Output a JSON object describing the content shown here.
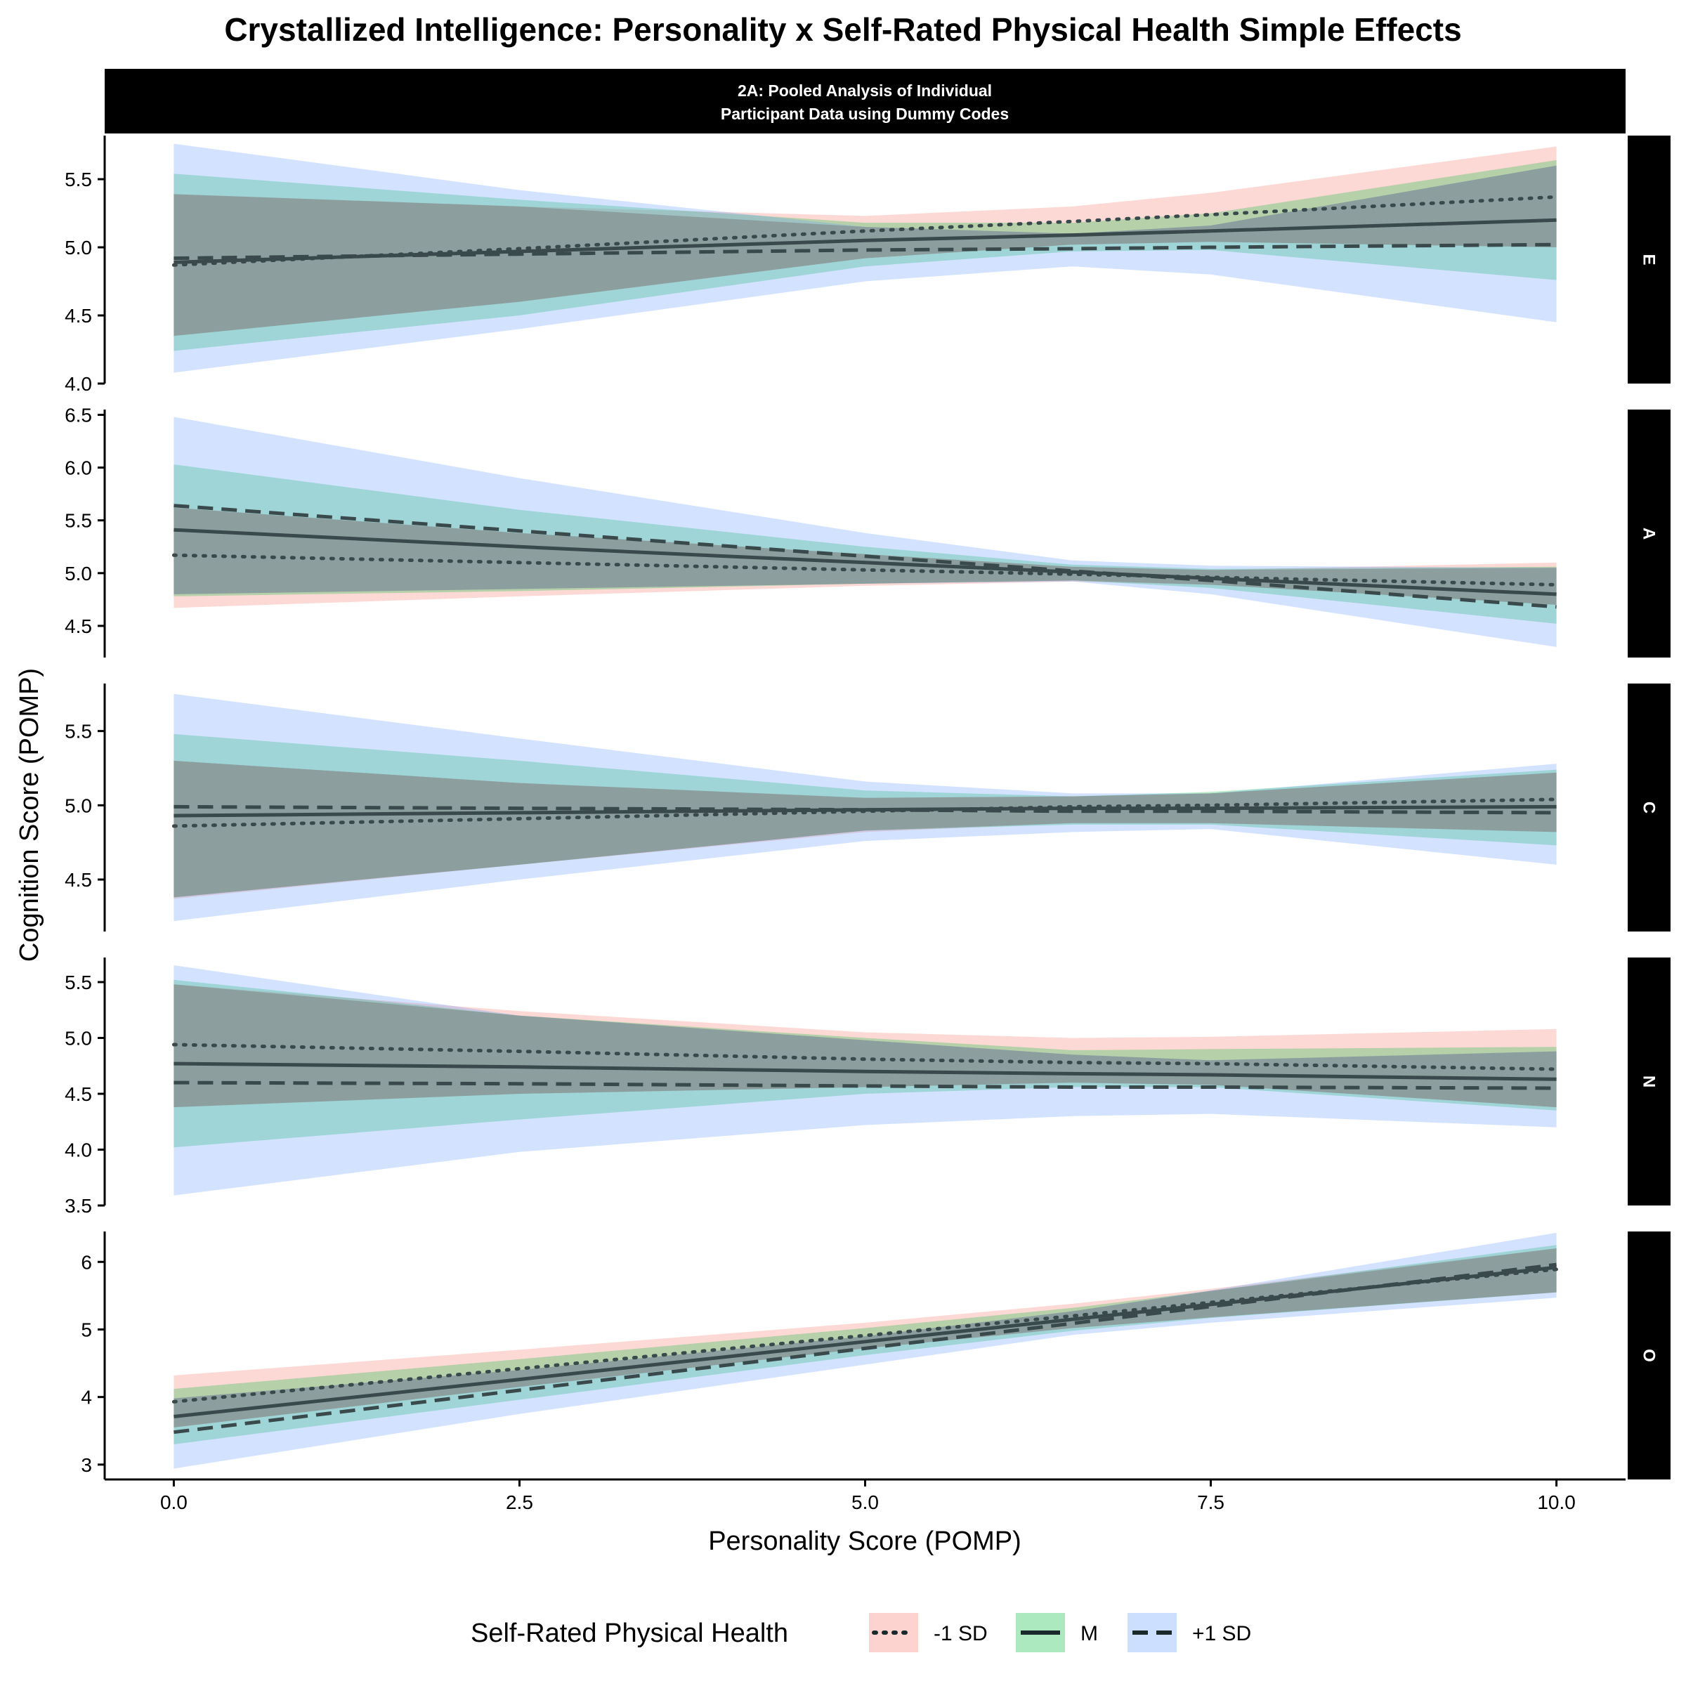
{
  "title": "Crystallized Intelligence: Personality x Self-Rated Physical Health Simple Effects",
  "strip_top": {
    "line1": "2A: Pooled Analysis of Individual",
    "line2": "Participant Data using Dummy Codes"
  },
  "xlabel": "Personality Score (POMP)",
  "ylabel": "Cognition Score (POMP)",
  "legend": {
    "title": "Self-Rated Physical Health",
    "items": [
      {
        "label": "-1 SD",
        "fill": "#f8766d",
        "dash": "dotted"
      },
      {
        "label": "M",
        "fill": "#00ba38",
        "dash": "solid"
      },
      {
        "label": "+1 SD",
        "fill": "#619cff",
        "dash": "dashed"
      }
    ]
  },
  "colors": {
    "minus_sd_band": "#f8766d",
    "mean_band": "#00ba38",
    "plus_sd_band": "#619cff",
    "line": "#3a4a4c",
    "strip_bg": "#000000",
    "strip_text": "#ffffff"
  },
  "chart_data": {
    "type": "line",
    "facet_by": "trait",
    "x_ticks": [
      "0.0",
      "2.5",
      "5.0",
      "7.5",
      "10.0"
    ],
    "xlim": [
      -0.5,
      10.5
    ],
    "x": [
      0,
      2.5,
      5,
      6.5,
      7.5,
      10
    ],
    "panels": [
      {
        "trait": "E",
        "ylim": [
          4.0,
          5.82
        ],
        "y_ticks": [
          "4.0",
          "4.5",
          "5.0",
          "5.5"
        ],
        "series": [
          {
            "name": "-1 SD",
            "values": [
              4.87,
              4.99,
              5.12,
              5.19,
              5.24,
              5.37
            ],
            "lower": [
              4.35,
              4.6,
              4.92,
              5.02,
              5.04,
              5.0
            ],
            "upper": [
              5.39,
              5.3,
              5.23,
              5.3,
              5.4,
              5.74
            ]
          },
          {
            "name": "M",
            "values": [
              4.89,
              4.97,
              5.05,
              5.09,
              5.12,
              5.2
            ],
            "lower": [
              4.24,
              4.5,
              4.86,
              4.97,
              4.98,
              4.76
            ],
            "upper": [
              5.54,
              5.35,
              5.18,
              5.18,
              5.25,
              5.64
            ]
          },
          {
            "name": "+1 SD",
            "values": [
              4.92,
              4.95,
              4.98,
              4.99,
              5.0,
              5.02
            ],
            "lower": [
              4.08,
              4.4,
              4.75,
              4.86,
              4.8,
              4.45
            ],
            "upper": [
              5.76,
              5.42,
              5.15,
              5.1,
              5.16,
              5.6
            ]
          }
        ]
      },
      {
        "trait": "A",
        "ylim": [
          4.2,
          6.55
        ],
        "y_ticks": [
          "4.5",
          "5.0",
          "5.5",
          "6.0",
          "6.5"
        ],
        "series": [
          {
            "name": "-1 SD",
            "values": [
              5.17,
              5.1,
              5.03,
              4.99,
              4.96,
              4.89
            ],
            "lower": [
              4.67,
              4.78,
              4.88,
              4.92,
              4.89,
              4.7
            ],
            "upper": [
              5.62,
              5.38,
              5.18,
              5.06,
              5.03,
              5.1
            ]
          },
          {
            "name": "M",
            "values": [
              5.41,
              5.25,
              5.1,
              5.01,
              4.95,
              4.8
            ],
            "lower": [
              4.78,
              4.83,
              4.9,
              4.93,
              4.86,
              4.52
            ],
            "upper": [
              6.03,
              5.6,
              5.25,
              5.08,
              5.04,
              5.06
            ]
          },
          {
            "name": "+1 SD",
            "values": [
              5.64,
              5.4,
              5.16,
              5.02,
              4.93,
              4.68
            ],
            "lower": [
              4.8,
              4.85,
              4.9,
              4.92,
              4.8,
              4.3
            ],
            "upper": [
              6.48,
              5.9,
              5.38,
              5.12,
              5.07,
              5.05
            ]
          }
        ]
      },
      {
        "trait": "C",
        "ylim": [
          4.15,
          5.82
        ],
        "y_ticks": [
          "4.5",
          "5.0",
          "5.5"
        ],
        "series": [
          {
            "name": "-1 SD",
            "values": [
              4.86,
              4.91,
              4.96,
              4.99,
              5.0,
              5.04
            ],
            "lower": [
              4.37,
              4.6,
              4.82,
              4.88,
              4.88,
              4.82
            ],
            "upper": [
              5.3,
              5.15,
              5.05,
              5.06,
              5.08,
              5.22
            ]
          },
          {
            "name": "M",
            "values": [
              4.93,
              4.95,
              4.97,
              4.98,
              4.98,
              4.99
            ],
            "lower": [
              4.38,
              4.6,
              4.83,
              4.87,
              4.87,
              4.73
            ],
            "upper": [
              5.48,
              5.3,
              5.1,
              5.06,
              5.09,
              5.24
            ]
          },
          {
            "name": "+1 SD",
            "values": [
              4.99,
              4.98,
              4.97,
              4.96,
              4.96,
              4.95
            ],
            "lower": [
              4.22,
              4.5,
              4.76,
              4.82,
              4.84,
              4.6
            ],
            "upper": [
              5.75,
              5.45,
              5.16,
              5.08,
              5.08,
              5.28
            ]
          }
        ]
      },
      {
        "trait": "N",
        "ylim": [
          3.5,
          5.72
        ],
        "y_ticks": [
          "3.5",
          "4.0",
          "4.5",
          "5.0",
          "5.5"
        ],
        "series": [
          {
            "name": "-1 SD",
            "values": [
              4.94,
              4.88,
              4.81,
              4.78,
              4.77,
              4.72
            ],
            "lower": [
              4.38,
              4.5,
              4.56,
              4.6,
              4.58,
              4.38
            ],
            "upper": [
              5.48,
              5.24,
              5.05,
              5.0,
              5.01,
              5.08
            ]
          },
          {
            "name": "M",
            "values": [
              4.77,
              4.74,
              4.7,
              4.68,
              4.67,
              4.63
            ],
            "lower": [
              4.02,
              4.27,
              4.5,
              4.56,
              4.56,
              4.35
            ],
            "upper": [
              5.52,
              5.2,
              5.0,
              4.89,
              4.9,
              4.92
            ]
          },
          {
            "name": "+1 SD",
            "values": [
              4.6,
              4.59,
              4.57,
              4.56,
              4.56,
              4.55
            ],
            "lower": [
              3.59,
              3.98,
              4.22,
              4.3,
              4.32,
              4.2
            ],
            "upper": [
              5.65,
              5.2,
              4.98,
              4.85,
              4.8,
              4.88
            ]
          }
        ]
      },
      {
        "trait": "O",
        "ylim": [
          2.78,
          6.45
        ],
        "y_ticks": [
          "3",
          "4",
          "5",
          "6"
        ],
        "series": [
          {
            "name": "-1 SD",
            "values": [
              3.93,
              4.42,
              4.91,
              5.2,
              5.4,
              5.89
            ],
            "lower": [
              3.55,
              4.15,
              4.72,
              5.02,
              5.18,
              5.55
            ],
            "upper": [
              4.32,
              4.7,
              5.1,
              5.38,
              5.6,
              6.2
            ]
          },
          {
            "name": "M",
            "values": [
              3.71,
              4.26,
              4.82,
              5.15,
              5.37,
              5.92
            ],
            "lower": [
              3.3,
              3.96,
              4.62,
              4.98,
              5.17,
              5.55
            ],
            "upper": [
              4.12,
              4.56,
              5.02,
              5.32,
              5.57,
              6.25
            ]
          },
          {
            "name": "+1 SD",
            "values": [
              3.48,
              4.1,
              4.72,
              5.09,
              5.34,
              5.96
            ],
            "lower": [
              2.94,
              3.75,
              4.48,
              4.92,
              5.1,
              5.47
            ],
            "upper": [
              3.98,
              4.4,
              4.9,
              5.27,
              5.58,
              6.43
            ]
          }
        ]
      }
    ]
  }
}
